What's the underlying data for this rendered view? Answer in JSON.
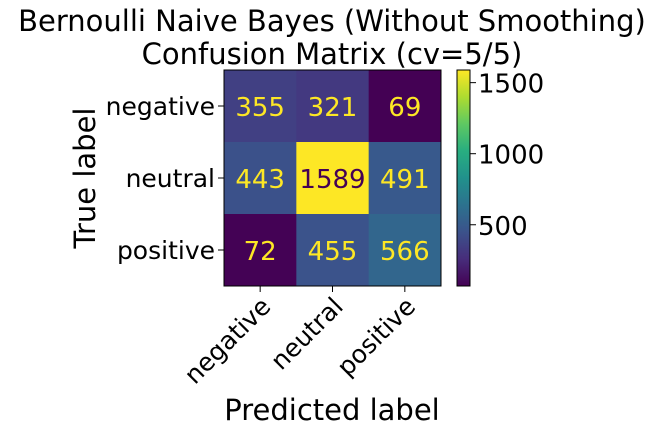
{
  "chart_data": {
    "type": "heatmap",
    "title_lines": [
      "Bernoulli Naive Bayes (Without Smoothing)",
      "Confusion Matrix (cv=5/5)"
    ],
    "xlabel": "Predicted label",
    "ylabel": "True label",
    "x_categories": [
      "negative",
      "neutral",
      "positive"
    ],
    "y_categories": [
      "negative",
      "neutral",
      "positive"
    ],
    "values": [
      [
        355,
        321,
        69
      ],
      [
        443,
        1589,
        491
      ],
      [
        72,
        455,
        566
      ]
    ],
    "colormap": "viridis",
    "vmin": 69,
    "vmax": 1589,
    "colorbar_ticks": [
      500,
      1000,
      1500
    ],
    "colorbar_tick_labels": [
      "500",
      "1000",
      "1500"
    ],
    "text_color_light": "#fde725",
    "text_color_dark": "#440154"
  }
}
